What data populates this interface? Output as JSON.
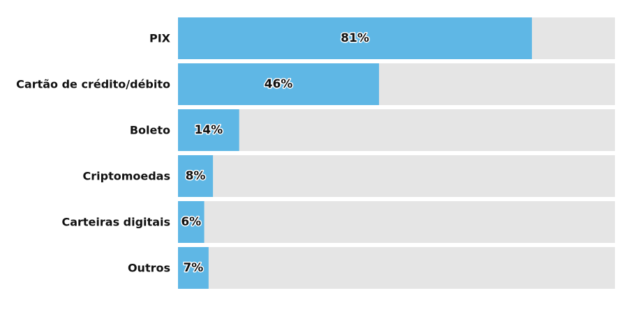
{
  "chart_data": {
    "type": "bar",
    "orientation": "horizontal",
    "categories": [
      "PIX",
      "Cartão de crédito/débito",
      "Boleto",
      "Criptomoedas",
      "Carteiras digitais",
      "Outros"
    ],
    "values": [
      81,
      46,
      14,
      8,
      6,
      7
    ],
    "value_labels": [
      "81%",
      "46%",
      "14%",
      "8%",
      "6%",
      "7%"
    ],
    "xlim": [
      0,
      100
    ],
    "grid": false,
    "legend": "none",
    "colors": {
      "bar": "#5fb7e5",
      "track": "#e5e5e5",
      "label_text": "#111111",
      "value_text": "#111111",
      "value_halo": "#ffffff"
    }
  }
}
